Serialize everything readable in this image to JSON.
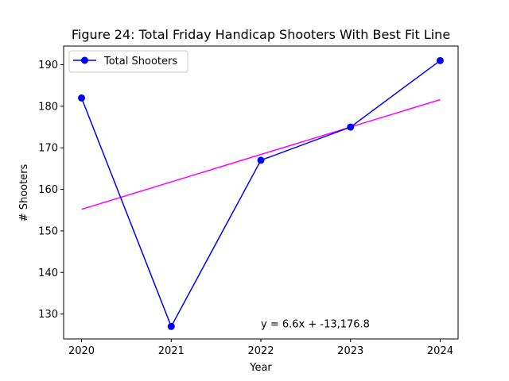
{
  "chart_data": {
    "type": "line",
    "title": "Figure 24: Total Friday Handicap Shooters With Best Fit Line",
    "xlabel": "Year",
    "ylabel": "# Shooters",
    "x": [
      2020,
      2021,
      2022,
      2023,
      2024
    ],
    "xlim": [
      2019.8,
      2024.2
    ],
    "ylim": [
      124,
      194.5
    ],
    "xticks": [
      2020,
      2021,
      2022,
      2023,
      2024
    ],
    "yticks": [
      130,
      140,
      150,
      160,
      170,
      180,
      190
    ],
    "grid": false,
    "legend_position": "upper-left",
    "series": [
      {
        "name": "Total Shooters",
        "values": [
          182,
          127,
          167,
          175,
          191
        ],
        "color": "#0000ff",
        "marker": "circle"
      }
    ],
    "fit_line": {
      "slope": 6.6,
      "intercept": -13176.8,
      "color": "#ff00ff"
    },
    "annotations": [
      {
        "text": "y = 6.6x + -13,176.8",
        "x": 2022,
        "y": 127.5
      }
    ]
  }
}
